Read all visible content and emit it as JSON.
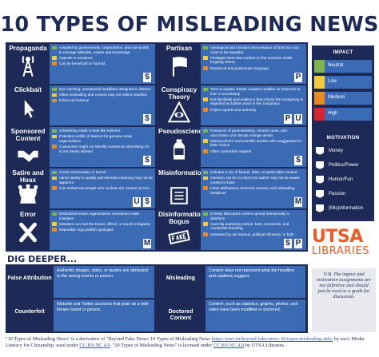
{
  "title": "10 TYPES OF MISLEADING NEWS",
  "colors": {
    "navy": "#1d2a57",
    "blue": "#3c6bb6",
    "neutral": "#7fb54a",
    "low": "#f4ca3b",
    "medium": "#ec8a22",
    "high": "#d7262f",
    "orange": "#f15a22"
  },
  "types": [
    {
      "name": "Propaganda",
      "icon": "radio-tower-icon",
      "ratings": [
        "$"
      ],
      "bullets": [
        {
          "text": "Adopted by governments, corporations, and non-profits to manage attitudes, values and knowledge",
          "level": "neutral"
        },
        {
          "text": "Appeals to emotions",
          "level": "low"
        },
        {
          "text": "Can be beneficial or harmful",
          "level": "medium"
        }
      ]
    },
    {
      "name": "Partisan",
      "icon": "flag-icon",
      "ratings": [
        "P"
      ],
      "bullets": [
        {
          "text": "Ideological and includes interpretation of facts but may claim to be impartial.",
          "level": "neutral"
        },
        {
          "text": "Privileges facts that conform to the narrative whilst forgoing others",
          "level": "low"
        },
        {
          "text": "Emotional and passionate language",
          "level": "medium"
        }
      ]
    },
    {
      "name": "Clickbait",
      "icon": "cursor-icon",
      "ratings": [
        "$"
      ],
      "bullets": [
        {
          "text": "Eye catching, sensational headlines designed to distract",
          "level": "neutral"
        },
        {
          "text": "Often misleading and content may not reflect headline",
          "level": "low"
        },
        {
          "text": "Drives ad revenue",
          "level": "medium"
        }
      ]
    },
    {
      "name": "Conspiracy Theory",
      "icon": "all-seeing-eye-icon",
      "ratings": [
        "P",
        "U"
      ],
      "bullets": [
        {
          "text": "Tries to explain simple complex realities as response to fear or uncertainty",
          "level": "neutral"
        },
        {
          "text": "Not falsifiable and evidence that refutes the conspiracy is regarded as further proof of the conspiracy",
          "level": "low"
        },
        {
          "text": "Reject experts and authority",
          "level": "medium"
        }
      ]
    },
    {
      "name": "Sponsored Content",
      "icon": "handshake-icon",
      "ratings": [
        "$"
      ],
      "bullets": [
        {
          "text": "Advertising made to look like editorial",
          "level": "neutral"
        },
        {
          "text": "Potential conflict of interest for genuine news organizations",
          "level": "low"
        },
        {
          "text": "Consumers might not identify content as advertising if it is not clearly labeled",
          "level": "medium"
        }
      ]
    },
    {
      "name": "Pseudoscience",
      "icon": "snake-oil-bottle-icon",
      "ratings": [
        "$"
      ],
      "bullets": [
        {
          "text": "Purveyors of greenwashing, miracle cures, anti-vaccination and climate change denial.",
          "level": "neutral"
        },
        {
          "text": "Misrepresents real scientific studies with exaggerated or false claims",
          "level": "low"
        },
        {
          "text": "Often contradicts experts",
          "level": "medium"
        }
      ]
    },
    {
      "name": "Satire and Hoax",
      "icon": "jester-hat-icon",
      "ratings": [
        "U",
        "$"
      ],
      "bullets": [
        {
          "text": "Social commentary or humor",
          "level": "neutral"
        },
        {
          "text": "Varies widely in quality and intended meaning may not be apparent",
          "level": "low"
        },
        {
          "text": "Can embarrass people who confuse the content as true.",
          "level": "medium"
        }
      ]
    },
    {
      "name": "Misinformation",
      "icon": "wrong-way-sign-icon",
      "ratings": [
        "M"
      ],
      "bullets": [
        {
          "text": "Includes a mix of factual, false, or partly-false content",
          "level": "neutral"
        },
        {
          "text": "Intention can be to inform but author may not be aware content is false",
          "level": "low"
        },
        {
          "text": "False attributions, doctored content, and misleading headlines",
          "level": "medium"
        }
      ]
    },
    {
      "name": "Error",
      "icon": "x-mark-icon",
      "ratings": [
        "M"
      ],
      "bullets": [
        {
          "text": "Established news organizations sometimes make mistakes",
          "level": "neutral"
        },
        {
          "text": "Mistakes can hurt the brand, offend, or result in litigation",
          "level": "low"
        },
        {
          "text": "Reputable orgs publish apologies",
          "level": "medium"
        }
      ]
    },
    {
      "name": "Disinformation/ Bogus",
      "icon": "fake-stamp-icon",
      "ratings": [
        "$",
        "P"
      ],
      "bullets": [
        {
          "text": "Entirely fabricated content spread intentionally to disinform",
          "level": "neutral"
        },
        {
          "text": "Guerrilla marketing tactics: bots, comments, and counterfeit branding",
          "level": "low"
        },
        {
          "text": "Motivated by ad revenue, political influence, or both",
          "level": "medium"
        }
      ]
    }
  ],
  "legend": {
    "impact_title": "IMPACT",
    "impact": [
      {
        "label": "Neutral",
        "level": "neutral"
      },
      {
        "label": "Low",
        "level": "low"
      },
      {
        "label": "Medium",
        "level": "medium"
      },
      {
        "label": "High",
        "level": "high"
      }
    ],
    "motivation_title": "MOTIVATION",
    "motivation": [
      {
        "label": "Money",
        "glyph": "$",
        "icon": "money-icon"
      },
      {
        "label": "Politics/Power",
        "glyph": "P",
        "icon": "politics-icon"
      },
      {
        "label": "Humor/Fun",
        "glyph": "U",
        "icon": "humor-icon"
      },
      {
        "label": "Passion",
        "glyph": "♥",
        "icon": "passion-icon"
      },
      {
        "label": "(Mis)information",
        "glyph": "M",
        "icon": "misinformation-icon"
      }
    ]
  },
  "logo": {
    "line1": "UTSA",
    "line2": "LIBRARIES"
  },
  "dig_deeper": {
    "title": "DIG DEEPER...",
    "items": [
      {
        "name": "False Attribution",
        "desc": "Authentic images, video, or quotes are attributed to the wrong events or person."
      },
      {
        "name": "Misleading",
        "desc": "Content does not represent what the headline and captions suggest."
      },
      {
        "name": "Counterfeit",
        "desc": "Website and Twitter accounts that pose as a well-known brand or person."
      },
      {
        "name": "Doctored Content",
        "desc": "Content, such as statistics, graphs, photos, and video have been modified or doctored."
      }
    ]
  },
  "note": "N.B. The impact and motivation assignments are not definitive and should just be used as a guide for discussion.",
  "footer": {
    "p1": "\"10 Types of Misleading News\" is a derivative of \"Beyond Fake News: 10 Types of Misleading News",
    "link1": "https://eavi.eu/beyond-fake-news-10-types-misleading-info/",
    "p2": "by eavi: Media Literacy for Citizenship, used under",
    "link2": "CC BY-NC 4.0",
    "p3": ". \"10 Types of Misleading News\" is licensed under",
    "link3": "CC BY-NC 4.0",
    "p4": "by UTSA Libraries."
  }
}
